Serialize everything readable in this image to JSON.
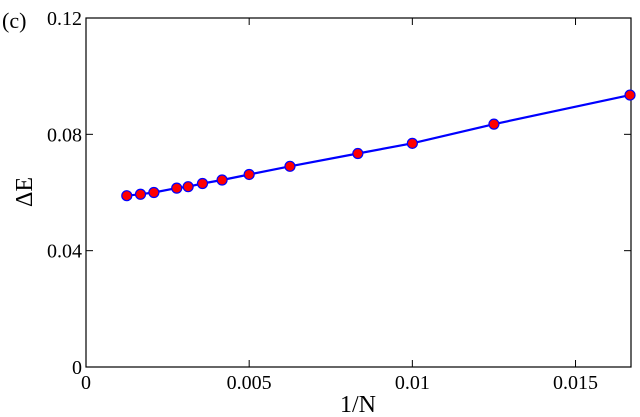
{
  "panel_label": "(c)",
  "chart_data": {
    "type": "line",
    "title": "",
    "xlabel": "1/N",
    "ylabel": "ΔE",
    "xlim": [
      0,
      0.0167
    ],
    "ylim": [
      0,
      0.12
    ],
    "x_ticks": [
      0,
      0.005,
      0.01,
      0.015
    ],
    "x_tick_labels": [
      "0",
      "0.005",
      "0.01",
      "0.015"
    ],
    "y_ticks": [
      0,
      0.04,
      0.08,
      0.12
    ],
    "y_tick_labels": [
      "0",
      "0.04",
      "0.08",
      "0.12"
    ],
    "grid": false,
    "line_color": "#0000ff",
    "marker_fill": "#ff0000",
    "marker_edge": "#0000ff",
    "series": [
      {
        "x": [
          0.00125,
          0.00167,
          0.00208,
          0.00278,
          0.00313,
          0.00357,
          0.00417,
          0.005,
          0.00625,
          0.00833,
          0.01,
          0.0125,
          0.01667
        ],
        "y": [
          0.0589,
          0.0594,
          0.06,
          0.0615,
          0.062,
          0.0631,
          0.0643,
          0.0662,
          0.069,
          0.0734,
          0.0769,
          0.0835,
          0.0935
        ]
      }
    ]
  }
}
